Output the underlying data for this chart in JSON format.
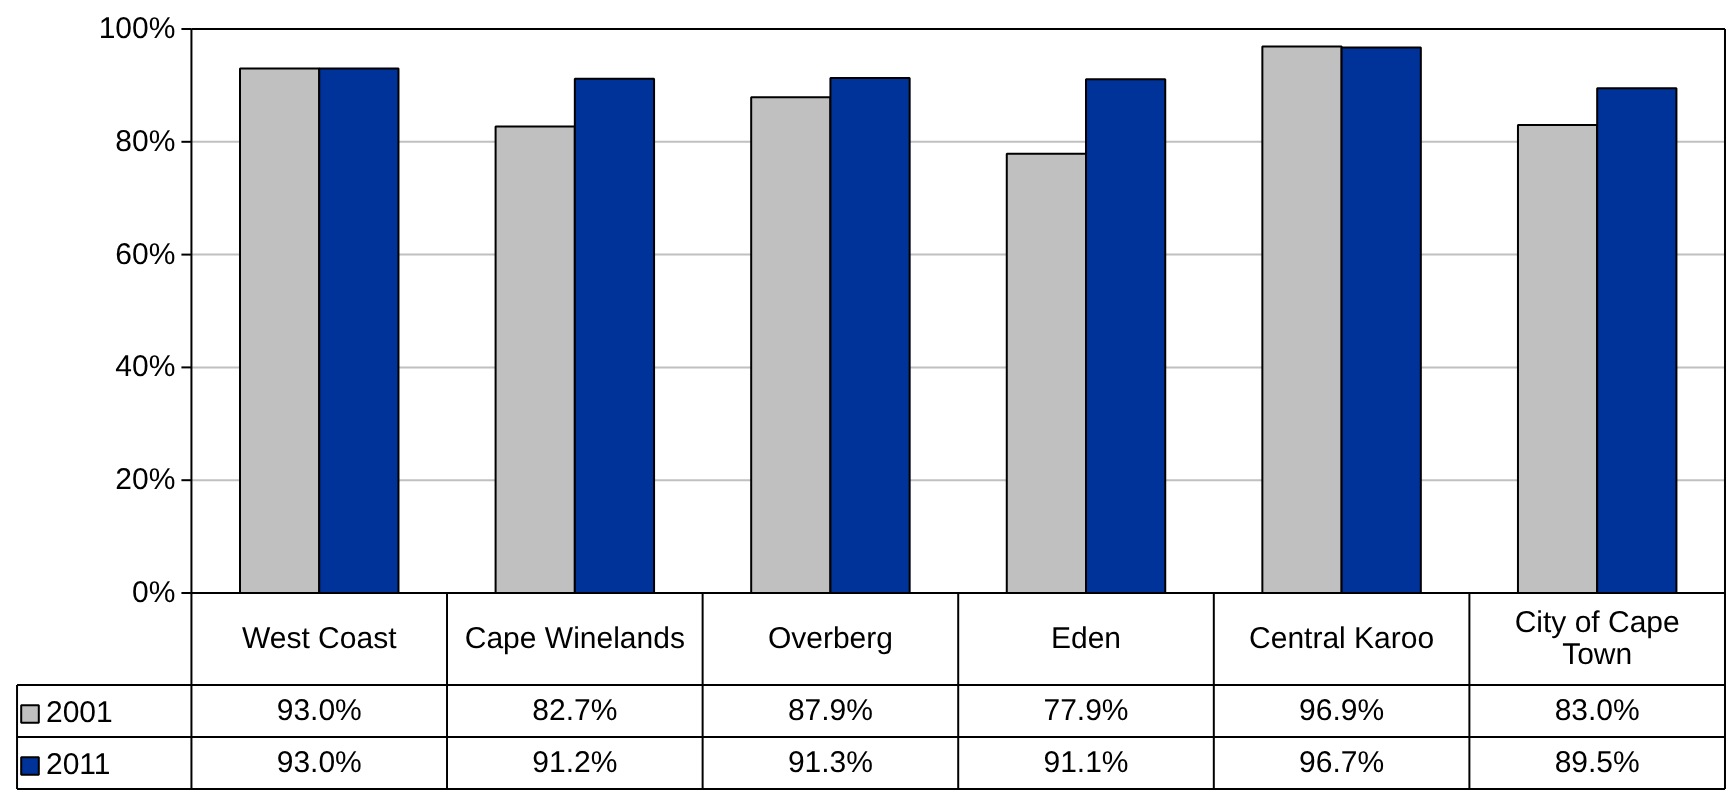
{
  "chart_data": {
    "type": "bar",
    "categories": [
      "West Coast",
      "Cape Winelands",
      "Overberg",
      "Eden",
      "Central Karoo",
      "City of Cape Town"
    ],
    "series": [
      {
        "name": "2001",
        "color": "#c0c0c0",
        "values": [
          93.0,
          82.7,
          87.9,
          77.9,
          96.9,
          83.0
        ],
        "value_labels": [
          "93.0%",
          "82.7%",
          "87.9%",
          "77.9%",
          "96.9%",
          "83.0%"
        ]
      },
      {
        "name": "2011",
        "color": "#003399",
        "values": [
          93.0,
          91.2,
          91.3,
          91.1,
          96.7,
          89.5
        ],
        "value_labels": [
          "93.0%",
          "91.2%",
          "91.3%",
          "91.1%",
          "96.7%",
          "89.5%"
        ]
      }
    ],
    "ylim": [
      0,
      100
    ],
    "yticks": [
      {
        "value": 0,
        "label": "0%"
      },
      {
        "value": 20,
        "label": "20%"
      },
      {
        "value": 40,
        "label": "40%"
      },
      {
        "value": 60,
        "label": "60%"
      },
      {
        "value": 80,
        "label": "80%"
      },
      {
        "value": 100,
        "label": "100%"
      }
    ],
    "grid": "y",
    "legend": "bottom left"
  }
}
